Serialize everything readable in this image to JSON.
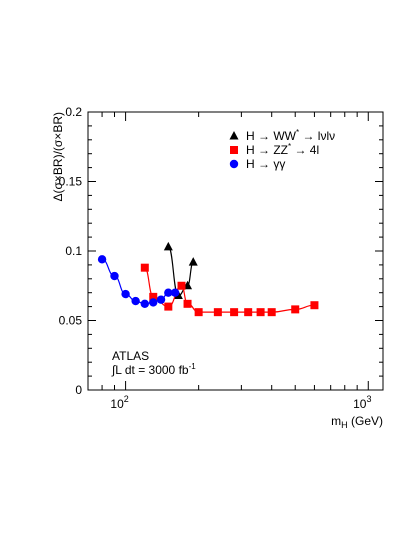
{
  "chart_data": {
    "type": "line",
    "x_scale": "log",
    "xlim": [
      70,
      1150
    ],
    "ylim": [
      0,
      0.2
    ],
    "ylabel": "Δ(σ×BR)/(σ×BR)",
    "xlabel_main": "m",
    "xlabel_sub": "H",
    "xlabel_unit": " (GeV)",
    "yticks": [
      {
        "value": 0,
        "label": "0"
      },
      {
        "value": 0.05,
        "label": "0.05"
      },
      {
        "value": 0.1,
        "label": "0.1"
      },
      {
        "value": 0.15,
        "label": "0.15"
      },
      {
        "value": 0.2,
        "label": "0.2"
      }
    ],
    "xticks": [
      {
        "value": 100,
        "base": "10",
        "exp": "2"
      },
      {
        "value": 1000,
        "base": "10",
        "exp": "3"
      }
    ],
    "legend_position": "top-right",
    "series": [
      {
        "name": "H → WW* → lνlν",
        "marker": "triangle",
        "color": "#000000",
        "x": [
          150,
          165,
          180,
          190
        ],
        "y": [
          0.103,
          0.068,
          0.075,
          0.092
        ]
      },
      {
        "name": "H → ZZ* → 4l",
        "marker": "square",
        "color": "#ff0000",
        "x": [
          120,
          130,
          150,
          170,
          180,
          200,
          240,
          280,
          320,
          360,
          400,
          500,
          600
        ],
        "y": [
          0.088,
          0.067,
          0.06,
          0.075,
          0.062,
          0.056,
          0.056,
          0.056,
          0.056,
          0.056,
          0.056,
          0.058,
          0.061
        ]
      },
      {
        "name": "H → γγ",
        "marker": "circle",
        "color": "#0000ff",
        "x": [
          80,
          90,
          100,
          110,
          120,
          130,
          140,
          150,
          160
        ],
        "y": [
          0.094,
          0.082,
          0.069,
          0.064,
          0.062,
          0.063,
          0.065,
          0.07,
          0.07
        ]
      }
    ],
    "legend": [
      {
        "key": "ww",
        "pre": "H → WW",
        "sup": "*",
        "post": " → lνlν"
      },
      {
        "key": "zz",
        "pre": "H → ZZ",
        "sup": "*",
        "post": " → 4l"
      },
      {
        "key": "gg",
        "pre": "H → γγ",
        "sup": "",
        "post": ""
      }
    ],
    "annotation": {
      "line1": "ATLAS",
      "line2_pre": "∫L dt = 3000 fb",
      "line2_sup": "-1"
    }
  }
}
